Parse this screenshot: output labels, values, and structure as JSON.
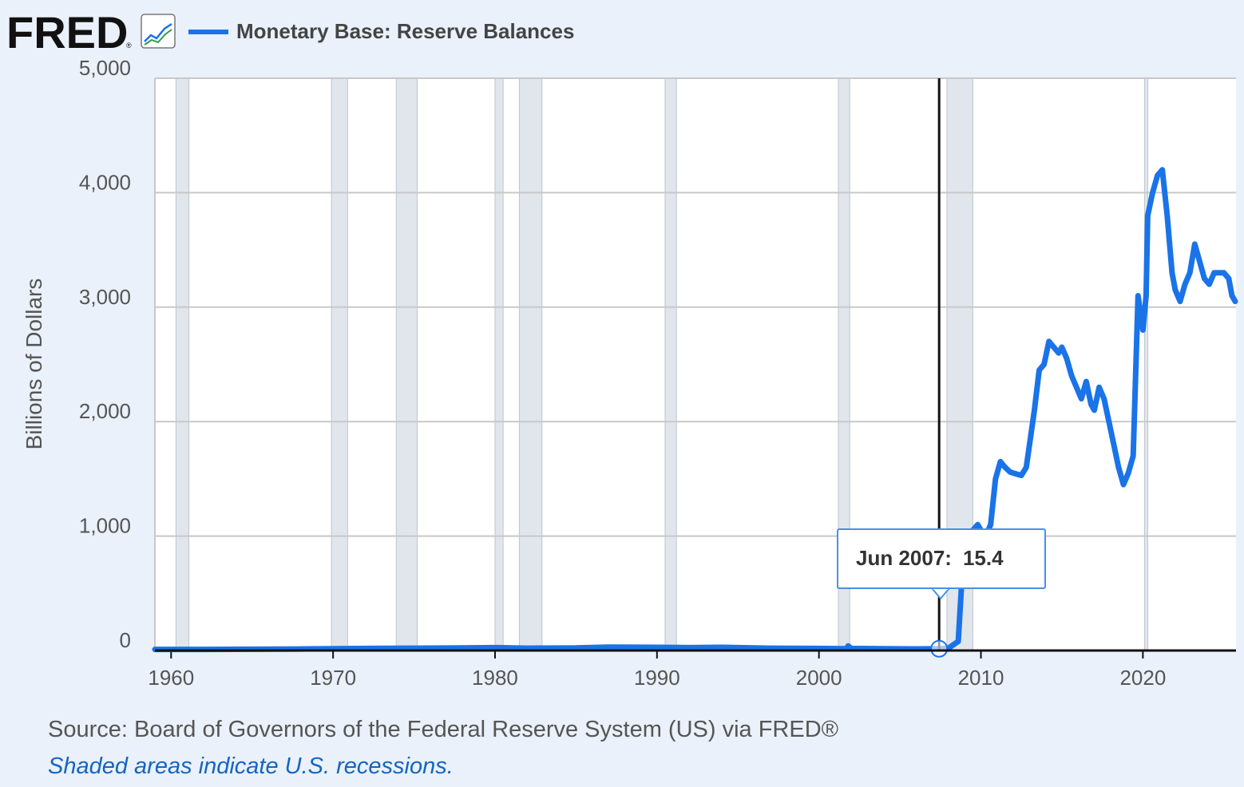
{
  "header": {
    "logo_text": "FRED",
    "series_title": "Monetary Base: Reserve Balances"
  },
  "colors": {
    "series": "#1a73e8",
    "recession": "#e1e6ed",
    "grid": "#c8c8c8",
    "background": "#eaf1fa",
    "plot_bg": "#ffffff"
  },
  "chart_data": {
    "type": "line",
    "title": "Monetary Base: Reserve Balances",
    "xlabel": "",
    "ylabel": "Billions of Dollars",
    "xlim": [
      1959.0,
      2025.75
    ],
    "ylim": [
      0,
      5000
    ],
    "x_ticks": [
      1960,
      1970,
      1980,
      1990,
      2000,
      2010,
      2020
    ],
    "x_tick_labels": [
      "1960",
      "1970",
      "1980",
      "1990",
      "2000",
      "2010",
      "2020"
    ],
    "y_ticks": [
      0,
      1000,
      2000,
      3000,
      4000,
      5000
    ],
    "y_tick_labels": [
      "0",
      "1,000",
      "2,000",
      "3,000",
      "4,000",
      "5,000"
    ],
    "grid": true,
    "recessions": [
      [
        1960.3,
        1961.1
      ],
      [
        1969.9,
        1970.9
      ],
      [
        1973.9,
        1975.2
      ],
      [
        1980.0,
        1980.5
      ],
      [
        1981.5,
        1982.9
      ],
      [
        1990.5,
        1991.2
      ],
      [
        2001.2,
        2001.9
      ],
      [
        2007.9,
        2009.5
      ],
      [
        2020.1,
        2020.3
      ]
    ],
    "series": [
      {
        "name": "Monetary Base: Reserve Balances",
        "x": [
          1959.0,
          1962.0,
          1965.0,
          1968.0,
          1970.0,
          1972.0,
          1975.0,
          1978.0,
          1980.0,
          1982.0,
          1985.0,
          1987.0,
          1990.0,
          1992.0,
          1994.0,
          1997.0,
          2000.0,
          2001.7,
          2001.8,
          2002.0,
          2004.0,
          2006.0,
          2007.5,
          2008.0,
          2008.6,
          2008.9,
          2009.2,
          2009.5,
          2009.8,
          2010.0,
          2010.3,
          2010.6,
          2010.9,
          2011.2,
          2011.5,
          2011.8,
          2012.0,
          2012.5,
          2012.8,
          2013.0,
          2013.3,
          2013.6,
          2013.9,
          2014.2,
          2014.5,
          2014.8,
          2015.0,
          2015.3,
          2015.6,
          2015.9,
          2016.2,
          2016.5,
          2016.8,
          2017.0,
          2017.3,
          2017.6,
          2017.9,
          2018.2,
          2018.5,
          2018.8,
          2019.1,
          2019.4,
          2019.7,
          2020.0,
          2020.1,
          2020.2,
          2020.3,
          2020.6,
          2020.9,
          2021.2,
          2021.5,
          2021.8,
          2022.0,
          2022.3,
          2022.6,
          2022.9,
          2023.2,
          2023.5,
          2023.8,
          2024.1,
          2024.4,
          2024.7,
          2025.0,
          2025.3,
          2025.5,
          2025.7
        ],
        "values": [
          10,
          10,
          11,
          13,
          16,
          18,
          20,
          22,
          25,
          20,
          22,
          30,
          28,
          25,
          28,
          20,
          18,
          15,
          40,
          18,
          16,
          14,
          15,
          20,
          80,
          800,
          1000,
          1050,
          1100,
          1050,
          1000,
          1100,
          1500,
          1650,
          1600,
          1560,
          1550,
          1530,
          1600,
          1800,
          2100,
          2450,
          2500,
          2700,
          2650,
          2600,
          2650,
          2550,
          2400,
          2300,
          2200,
          2350,
          2150,
          2100,
          2300,
          2200,
          2000,
          1800,
          1600,
          1450,
          1550,
          1700,
          3100,
          2800,
          2950,
          3100,
          3800,
          4000,
          4150,
          4200,
          3800,
          3300,
          3150,
          3050,
          3200,
          3300,
          3550,
          3400,
          3250,
          3200,
          3300,
          3300,
          3300,
          3250,
          3100,
          3050
        ]
      }
    ],
    "hover": {
      "label": "Jun 2007:",
      "value": "15.4",
      "x": 2007.42,
      "y": 15.4
    }
  },
  "footer": {
    "source": "Source: Board of Governors of the Federal Reserve System (US) via FRED®",
    "note": "Shaded areas indicate U.S. recessions."
  }
}
